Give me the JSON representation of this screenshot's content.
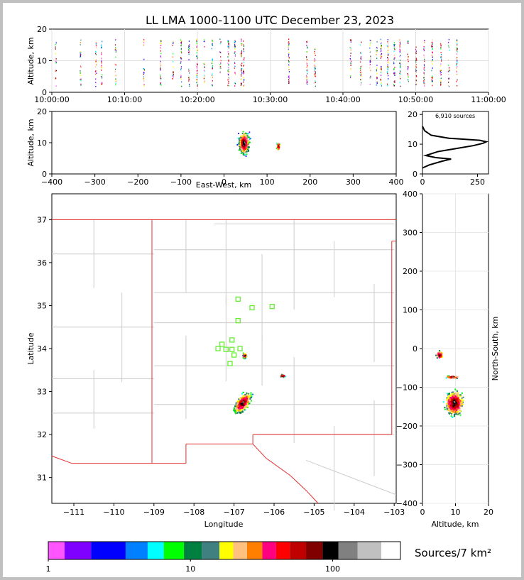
{
  "title": "LL LMA 1000-1100 UTC December 23, 2023",
  "source_count": "6,910 sources",
  "colorbar_label": "Sources/7 km²",
  "chart_data": [
    {
      "type": "scatter",
      "panel": "time-height",
      "ylabel": "Altitude, km",
      "xticks": [
        "10:00:00",
        "10:10:00",
        "10:20:00",
        "10:30:00",
        "10:40:00",
        "10:50:00",
        "11:00:00"
      ],
      "xlim_minutes": [
        0,
        60
      ],
      "ylim": [
        0,
        20
      ],
      "yticks": [
        "0",
        "10",
        "20"
      ],
      "active_minutes": [
        0.5,
        3.9,
        6.0,
        6.8,
        8.7,
        12.6,
        14.9,
        16.6,
        17.7,
        18.8,
        19.9,
        20.9,
        22.0,
        23.1,
        24.2,
        25.1,
        26.0,
        26.3,
        32.5,
        35.0,
        36.1,
        41.0,
        42.4,
        43.7,
        44.6,
        45.2,
        46.1,
        47.0,
        47.8,
        48.9,
        50.0,
        51.1,
        52.2,
        53.4,
        54.5,
        55.6
      ],
      "altitude_range_km": [
        2,
        17
      ]
    },
    {
      "type": "heatmap",
      "panel": "east-west vs altitude",
      "xlabel": "East-West, km",
      "ylabel": "Altitude, km",
      "xticks": [
        "−400",
        "−300",
        "−200",
        "−100",
        "0",
        "100",
        "200",
        "300",
        "400"
      ],
      "xlim": [
        -400,
        400
      ],
      "ylim": [
        0,
        20
      ],
      "yticks": [
        "0",
        "10",
        "20"
      ],
      "clusters": [
        {
          "x_center_km": 45,
          "x_halfwidth_km": 18,
          "z_center_km": 10,
          "z_halfwidth_km": 5
        },
        {
          "x_center_km": 125,
          "x_halfwidth_km": 5,
          "z_center_km": 9,
          "z_halfwidth_km": 2
        }
      ]
    },
    {
      "type": "line",
      "panel": "altitude histogram",
      "xticks": [
        "0",
        "250"
      ],
      "xlim": [
        0,
        300
      ],
      "yticks": [
        "0",
        "10",
        "20"
      ],
      "ylim": [
        0,
        21
      ],
      "profile": [
        [
          0,
          2
        ],
        [
          30,
          3
        ],
        [
          90,
          4.3
        ],
        [
          130,
          5
        ],
        [
          60,
          5.5
        ],
        [
          15,
          6.2
        ],
        [
          70,
          7.5
        ],
        [
          150,
          8.5
        ],
        [
          230,
          9.5
        ],
        [
          275,
          10.3
        ],
        [
          290,
          10.8
        ],
        [
          260,
          11.3
        ],
        [
          120,
          12
        ],
        [
          40,
          13
        ],
        [
          10,
          14.5
        ],
        [
          0,
          16
        ]
      ]
    },
    {
      "type": "heatmap",
      "panel": "plan view map",
      "xlabel": "Longitude",
      "ylabel": "Latitude",
      "xticks": [
        "−111",
        "−110",
        "−109",
        "−108",
        "−107",
        "−106",
        "−105",
        "−104",
        "−103"
      ],
      "yticks": [
        "31",
        "32",
        "33",
        "34",
        "35",
        "36",
        "37"
      ],
      "xlim": [
        -111.55,
        -102.95
      ],
      "ylim": [
        30.4,
        37.6
      ],
      "stations": [
        [
          -106.9,
          35.15
        ],
        [
          -106.55,
          34.95
        ],
        [
          -106.05,
          34.98
        ],
        [
          -106.9,
          34.65
        ],
        [
          -107.05,
          34.2
        ],
        [
          -107.3,
          34.1
        ],
        [
          -107.4,
          34.0
        ],
        [
          -107.2,
          33.98
        ],
        [
          -107.05,
          33.98
        ],
        [
          -106.85,
          34.0
        ],
        [
          -107.0,
          33.85
        ],
        [
          -107.1,
          33.65
        ]
      ],
      "clusters": [
        {
          "lon": -106.75,
          "lat": 33.85,
          "spread_lon": 0.06,
          "spread_lat": 0.08
        },
        {
          "lon": -106.8,
          "lat": 32.75,
          "spread_lon": 0.22,
          "spread_lat": 0.3
        },
        {
          "lon": -105.8,
          "lat": 33.38,
          "spread_lon": 0.08,
          "spread_lat": 0.04
        }
      ]
    },
    {
      "type": "heatmap",
      "panel": "altitude vs north-south",
      "xlabel": "Altitude, km",
      "ylabel": "North-South, km",
      "xticks": [
        "0",
        "10",
        "20"
      ],
      "yticks": [
        "400",
        "300",
        "200",
        "100",
        "0",
        "−100",
        "−200",
        "−300",
        "−400"
      ],
      "xlim": [
        0,
        20
      ],
      "ylim": [
        -400,
        400
      ],
      "clusters": [
        {
          "z_center_km": 5,
          "y_center_km": -15,
          "z_halfwidth_km": 1.5,
          "y_halfwidth_km": 15
        },
        {
          "z_center_km": 9.5,
          "y_center_km": -140,
          "z_halfwidth_km": 4,
          "y_halfwidth_km": 45
        },
        {
          "z_center_km": 9,
          "y_center_km": -72,
          "z_halfwidth_km": 3,
          "y_halfwidth_km": 5
        }
      ]
    },
    {
      "type": "heatmap",
      "panel": "colorbar",
      "tick_labels": [
        "1",
        "10",
        "100"
      ],
      "colors": [
        "#ff55ff",
        "#8000ff",
        "#0000ff",
        "#0080ff",
        "#00ffff",
        "#00ff00",
        "#008040",
        "#408080",
        "#ffff00",
        "#ffc080",
        "#ff8000",
        "#ff0080",
        "#ff0000",
        "#c00000",
        "#800000",
        "#000000",
        "#808080",
        "#c0c0c0",
        "#ffffff"
      ]
    }
  ]
}
